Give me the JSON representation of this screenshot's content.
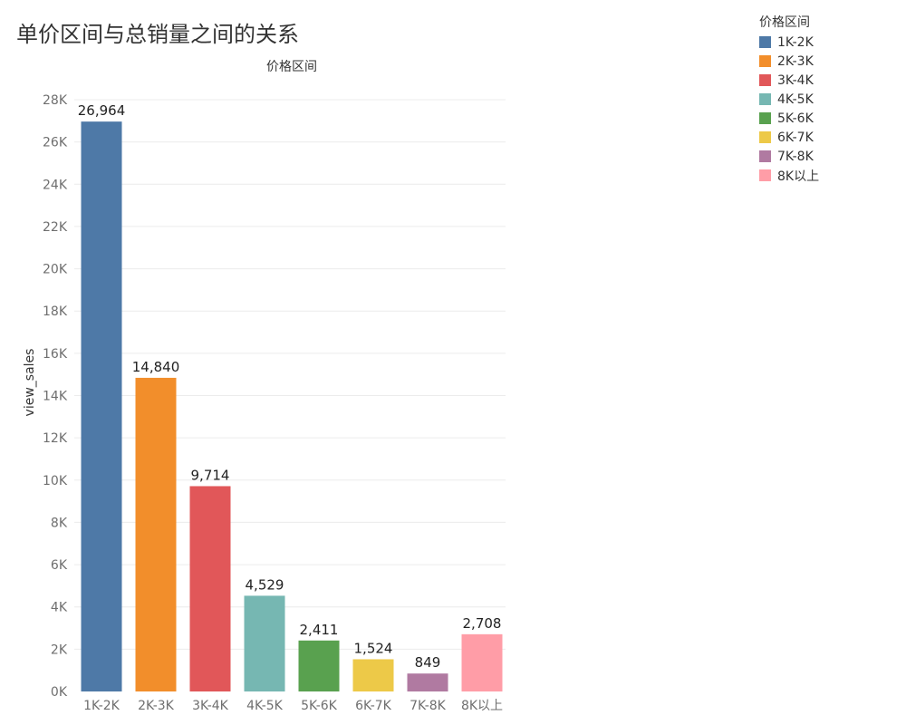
{
  "chart_data": {
    "type": "bar",
    "title": "单价区间与总销量之间的关系",
    "column_header": "价格区间",
    "ylabel": "view_sales",
    "xlabel": "",
    "categories": [
      "1K-2K",
      "2K-3K",
      "3K-4K",
      "4K-5K",
      "5K-6K",
      "6K-7K",
      "7K-8K",
      "8K以上"
    ],
    "values": [
      26964,
      14840,
      9714,
      4529,
      2411,
      1524,
      849,
      2708
    ],
    "value_labels": [
      "26,964",
      "14,840",
      "9,714",
      "4,529",
      "2,411",
      "1,524",
      "849",
      "2,708"
    ],
    "colors": [
      "#4e79a7",
      "#f28e2b",
      "#e15759",
      "#76b7b2",
      "#59a14f",
      "#edc948",
      "#b07aa1",
      "#ff9da7"
    ],
    "ylim": [
      0,
      28000
    ],
    "yticks": [
      0,
      2000,
      4000,
      6000,
      8000,
      10000,
      12000,
      14000,
      16000,
      18000,
      20000,
      22000,
      24000,
      26000,
      28000
    ],
    "ytick_labels": [
      "0K",
      "2K",
      "4K",
      "6K",
      "8K",
      "10K",
      "12K",
      "14K",
      "16K",
      "18K",
      "20K",
      "22K",
      "24K",
      "26K",
      "28K"
    ],
    "grid": true,
    "legend": {
      "title": "价格区间",
      "position": "top-right",
      "items": [
        "1K-2K",
        "2K-3K",
        "3K-4K",
        "4K-5K",
        "5K-6K",
        "6K-7K",
        "7K-8K",
        "8K以上"
      ]
    }
  }
}
